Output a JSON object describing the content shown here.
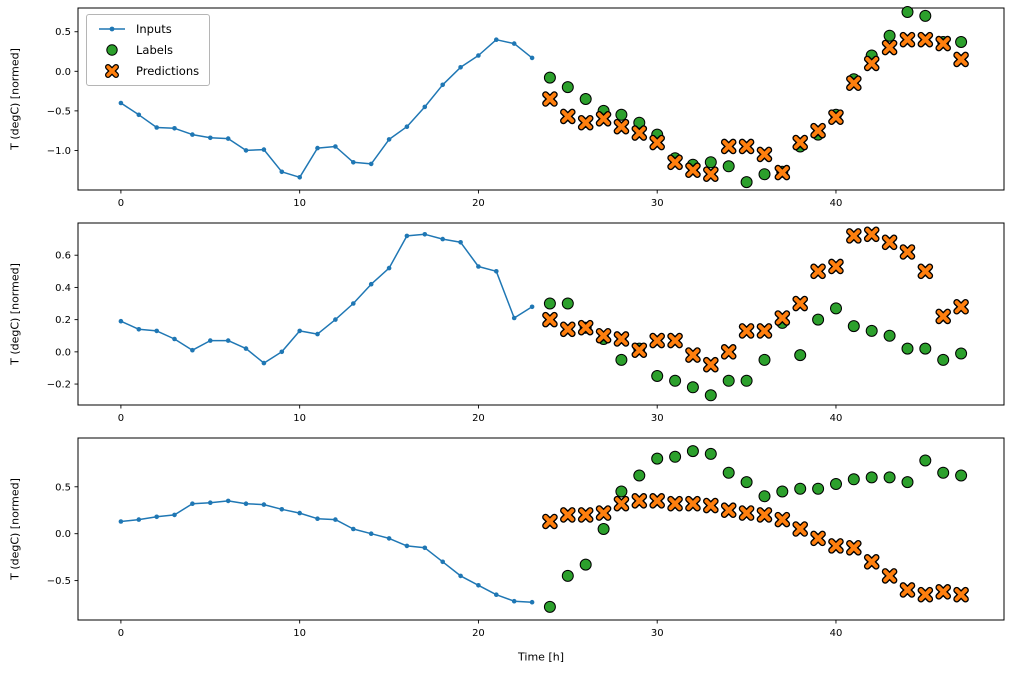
{
  "colors": {
    "inputs": "#1f77b4",
    "labels": "#2ca02c",
    "predictions": "#ff7f0e",
    "marker_edge": "#000000"
  },
  "chart_data": [
    {
      "type": "line",
      "title": "",
      "ylabel": "T (degC) [normed]",
      "xlabel": "",
      "grid": false,
      "legend": [
        "Inputs",
        "Labels",
        "Predictions"
      ],
      "legend_position": "upper left",
      "xlim": [
        -2.4,
        49.4
      ],
      "ylim": [
        -1.5,
        0.8
      ],
      "xticks": [
        0,
        10,
        20,
        30,
        40
      ],
      "xtick_labels": [
        "0",
        "10",
        "20",
        "30",
        "40"
      ],
      "yticks": [
        0.5,
        0.0,
        -0.5,
        -1.0
      ],
      "ytick_labels": [
        "0.5",
        "0.0",
        "−0.5",
        "−1.0"
      ],
      "series": [
        {
          "name": "Inputs",
          "type": "line",
          "marker": "dot",
          "x": [
            0,
            1,
            2,
            3,
            4,
            5,
            6,
            7,
            8,
            9,
            10,
            11,
            12,
            13,
            14,
            15,
            16,
            17,
            18,
            19,
            20,
            21,
            22,
            23
          ],
          "y": [
            -0.4,
            -0.55,
            -0.71,
            -0.72,
            -0.8,
            -0.84,
            -0.85,
            -1.0,
            -0.99,
            -1.27,
            -1.34,
            -0.97,
            -0.95,
            -1.15,
            -1.17,
            -0.86,
            -0.7,
            -0.45,
            -0.17,
            0.05,
            0.2,
            0.4,
            0.35,
            0.17
          ]
        },
        {
          "name": "Labels",
          "type": "scatter",
          "marker": "circle",
          "x": [
            24,
            25,
            26,
            27,
            28,
            29,
            30,
            31,
            32,
            33,
            34,
            35,
            36,
            37,
            38,
            39,
            40,
            41,
            42,
            43,
            44,
            45,
            46,
            47
          ],
          "y": [
            -0.08,
            -0.2,
            -0.35,
            -0.5,
            -0.55,
            -0.65,
            -0.8,
            -1.1,
            -1.18,
            -1.15,
            -1.2,
            -1.4,
            -1.3,
            -1.27,
            -0.95,
            -0.8,
            -0.55,
            -0.1,
            0.2,
            0.45,
            0.75,
            0.7,
            0.37,
            0.37
          ]
        },
        {
          "name": "Predictions",
          "type": "scatter",
          "marker": "X",
          "x": [
            24,
            25,
            26,
            27,
            28,
            29,
            30,
            31,
            32,
            33,
            34,
            35,
            36,
            37,
            38,
            39,
            40,
            41,
            42,
            43,
            44,
            45,
            46,
            47
          ],
          "y": [
            -0.35,
            -0.57,
            -0.65,
            -0.6,
            -0.7,
            -0.78,
            -0.9,
            -1.15,
            -1.25,
            -1.3,
            -0.95,
            -0.95,
            -1.05,
            -1.28,
            -0.9,
            -0.75,
            -0.58,
            -0.15,
            0.1,
            0.3,
            0.4,
            0.4,
            0.35,
            0.15
          ]
        }
      ]
    },
    {
      "type": "line",
      "title": "",
      "ylabel": "T (degC) [normed]",
      "xlabel": "",
      "grid": false,
      "xlim": [
        -2.4,
        49.4
      ],
      "ylim": [
        -0.33,
        0.8
      ],
      "xticks": [
        0,
        10,
        20,
        30,
        40
      ],
      "xtick_labels": [
        "0",
        "10",
        "20",
        "30",
        "40"
      ],
      "yticks": [
        0.6,
        0.4,
        0.2,
        0.0,
        -0.2
      ],
      "ytick_labels": [
        "0.6",
        "0.4",
        "0.2",
        "0.0",
        "−0.2"
      ],
      "series": [
        {
          "name": "Inputs",
          "type": "line",
          "marker": "dot",
          "x": [
            0,
            1,
            2,
            3,
            4,
            5,
            6,
            7,
            8,
            9,
            10,
            11,
            12,
            13,
            14,
            15,
            16,
            17,
            18,
            19,
            20,
            21,
            22,
            23
          ],
          "y": [
            0.19,
            0.14,
            0.13,
            0.08,
            0.01,
            0.07,
            0.07,
            0.02,
            -0.07,
            0.0,
            0.13,
            0.11,
            0.2,
            0.3,
            0.42,
            0.52,
            0.72,
            0.73,
            0.7,
            0.68,
            0.53,
            0.5,
            0.21,
            0.28
          ]
        },
        {
          "name": "Labels",
          "type": "scatter",
          "marker": "circle",
          "x": [
            24,
            25,
            26,
            27,
            28,
            29,
            30,
            31,
            32,
            33,
            34,
            35,
            36,
            37,
            38,
            39,
            40,
            41,
            42,
            43,
            44,
            45,
            46,
            47
          ],
          "y": [
            0.3,
            0.3,
            0.15,
            0.08,
            -0.05,
            0.02,
            -0.15,
            -0.18,
            -0.22,
            -0.27,
            -0.18,
            -0.18,
            -0.05,
            0.18,
            -0.02,
            0.2,
            0.27,
            0.16,
            0.13,
            0.1,
            0.02,
            0.02,
            -0.05,
            -0.01
          ]
        },
        {
          "name": "Predictions",
          "type": "scatter",
          "marker": "X",
          "x": [
            24,
            25,
            26,
            27,
            28,
            29,
            30,
            31,
            32,
            33,
            34,
            35,
            36,
            37,
            38,
            39,
            40,
            41,
            42,
            43,
            44,
            45,
            46,
            47
          ],
          "y": [
            0.2,
            0.14,
            0.15,
            0.1,
            0.08,
            0.01,
            0.07,
            0.07,
            -0.02,
            -0.08,
            0.0,
            0.13,
            0.13,
            0.21,
            0.3,
            0.5,
            0.53,
            0.72,
            0.73,
            0.68,
            0.62,
            0.5,
            0.22,
            0.28
          ]
        }
      ]
    },
    {
      "type": "line",
      "title": "",
      "ylabel": "T (degC) [normed]",
      "xlabel": "Time [h]",
      "grid": false,
      "xlim": [
        -2.4,
        49.4
      ],
      "ylim": [
        -0.92,
        1.02
      ],
      "xticks": [
        0,
        10,
        20,
        30,
        40
      ],
      "xtick_labels": [
        "0",
        "10",
        "20",
        "30",
        "40"
      ],
      "yticks": [
        0.5,
        0.0,
        -0.5
      ],
      "ytick_labels": [
        "0.5",
        "0.0",
        "−0.5"
      ],
      "series": [
        {
          "name": "Inputs",
          "type": "line",
          "marker": "dot",
          "x": [
            0,
            1,
            2,
            3,
            4,
            5,
            6,
            7,
            8,
            9,
            10,
            11,
            12,
            13,
            14,
            15,
            16,
            17,
            18,
            19,
            20,
            21,
            22,
            23
          ],
          "y": [
            0.13,
            0.15,
            0.18,
            0.2,
            0.32,
            0.33,
            0.35,
            0.32,
            0.31,
            0.26,
            0.22,
            0.16,
            0.15,
            0.05,
            0.0,
            -0.05,
            -0.13,
            -0.15,
            -0.3,
            -0.45,
            -0.55,
            -0.65,
            -0.72,
            -0.73
          ]
        },
        {
          "name": "Labels",
          "type": "scatter",
          "marker": "circle",
          "x": [
            24,
            25,
            26,
            27,
            28,
            29,
            30,
            31,
            32,
            33,
            34,
            35,
            36,
            37,
            38,
            39,
            40,
            41,
            42,
            43,
            44,
            45,
            46,
            47
          ],
          "y": [
            -0.78,
            -0.45,
            -0.33,
            0.05,
            0.45,
            0.62,
            0.8,
            0.82,
            0.88,
            0.85,
            0.65,
            0.55,
            0.4,
            0.45,
            0.48,
            0.48,
            0.53,
            0.58,
            0.6,
            0.6,
            0.55,
            0.78,
            0.65,
            0.62
          ]
        },
        {
          "name": "Predictions",
          "type": "scatter",
          "marker": "X",
          "x": [
            24,
            25,
            26,
            27,
            28,
            29,
            30,
            31,
            32,
            33,
            34,
            35,
            36,
            37,
            38,
            39,
            40,
            41,
            42,
            43,
            44,
            45,
            46,
            47
          ],
          "y": [
            0.13,
            0.2,
            0.2,
            0.22,
            0.32,
            0.35,
            0.35,
            0.32,
            0.32,
            0.3,
            0.25,
            0.22,
            0.2,
            0.15,
            0.05,
            -0.05,
            -0.13,
            -0.15,
            -0.3,
            -0.45,
            -0.6,
            -0.65,
            -0.62,
            -0.65
          ]
        }
      ]
    }
  ]
}
